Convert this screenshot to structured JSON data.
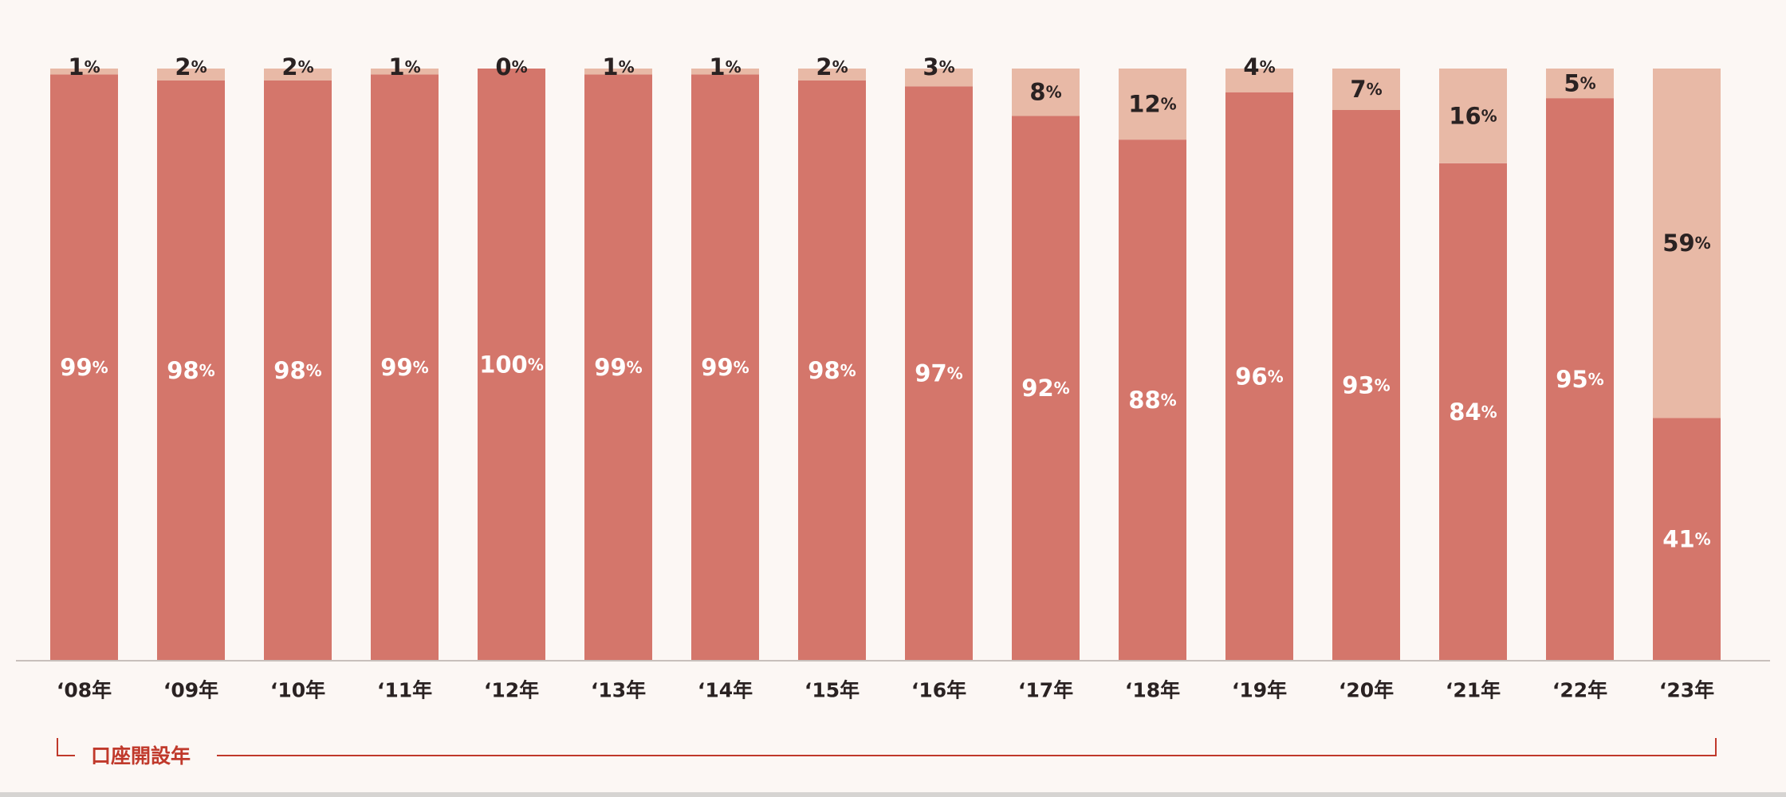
{
  "chart_data": {
    "type": "bar",
    "stacked": true,
    "normalized": true,
    "categories": [
      "‘08年",
      "‘09年",
      "‘10年",
      "‘11年",
      "‘12年",
      "‘13年",
      "‘14年",
      "‘15年",
      "‘16年",
      "‘17年",
      "‘18年",
      "‘19年",
      "‘20年",
      "‘21年",
      "‘22年",
      "‘23年"
    ],
    "series": [
      {
        "color": "#d4766b",
        "label_color": "#ffffff",
        "values": [
          99,
          98,
          98,
          99,
          100,
          99,
          99,
          98,
          97,
          92,
          88,
          96,
          93,
          84,
          95,
          41
        ]
      },
      {
        "color": "#e8b9a6",
        "label_color": "#2a2222",
        "values": [
          1,
          2,
          2,
          1,
          0,
          1,
          1,
          2,
          3,
          8,
          12,
          4,
          7,
          16,
          5,
          59
        ]
      }
    ],
    "value_unit": "%",
    "ylim": [
      0,
      100
    ],
    "grid": false,
    "legend": "none",
    "xlabel": "口座開設年",
    "xlabel_color": "#c0392b",
    "axis_color": "#c8c0bc"
  }
}
